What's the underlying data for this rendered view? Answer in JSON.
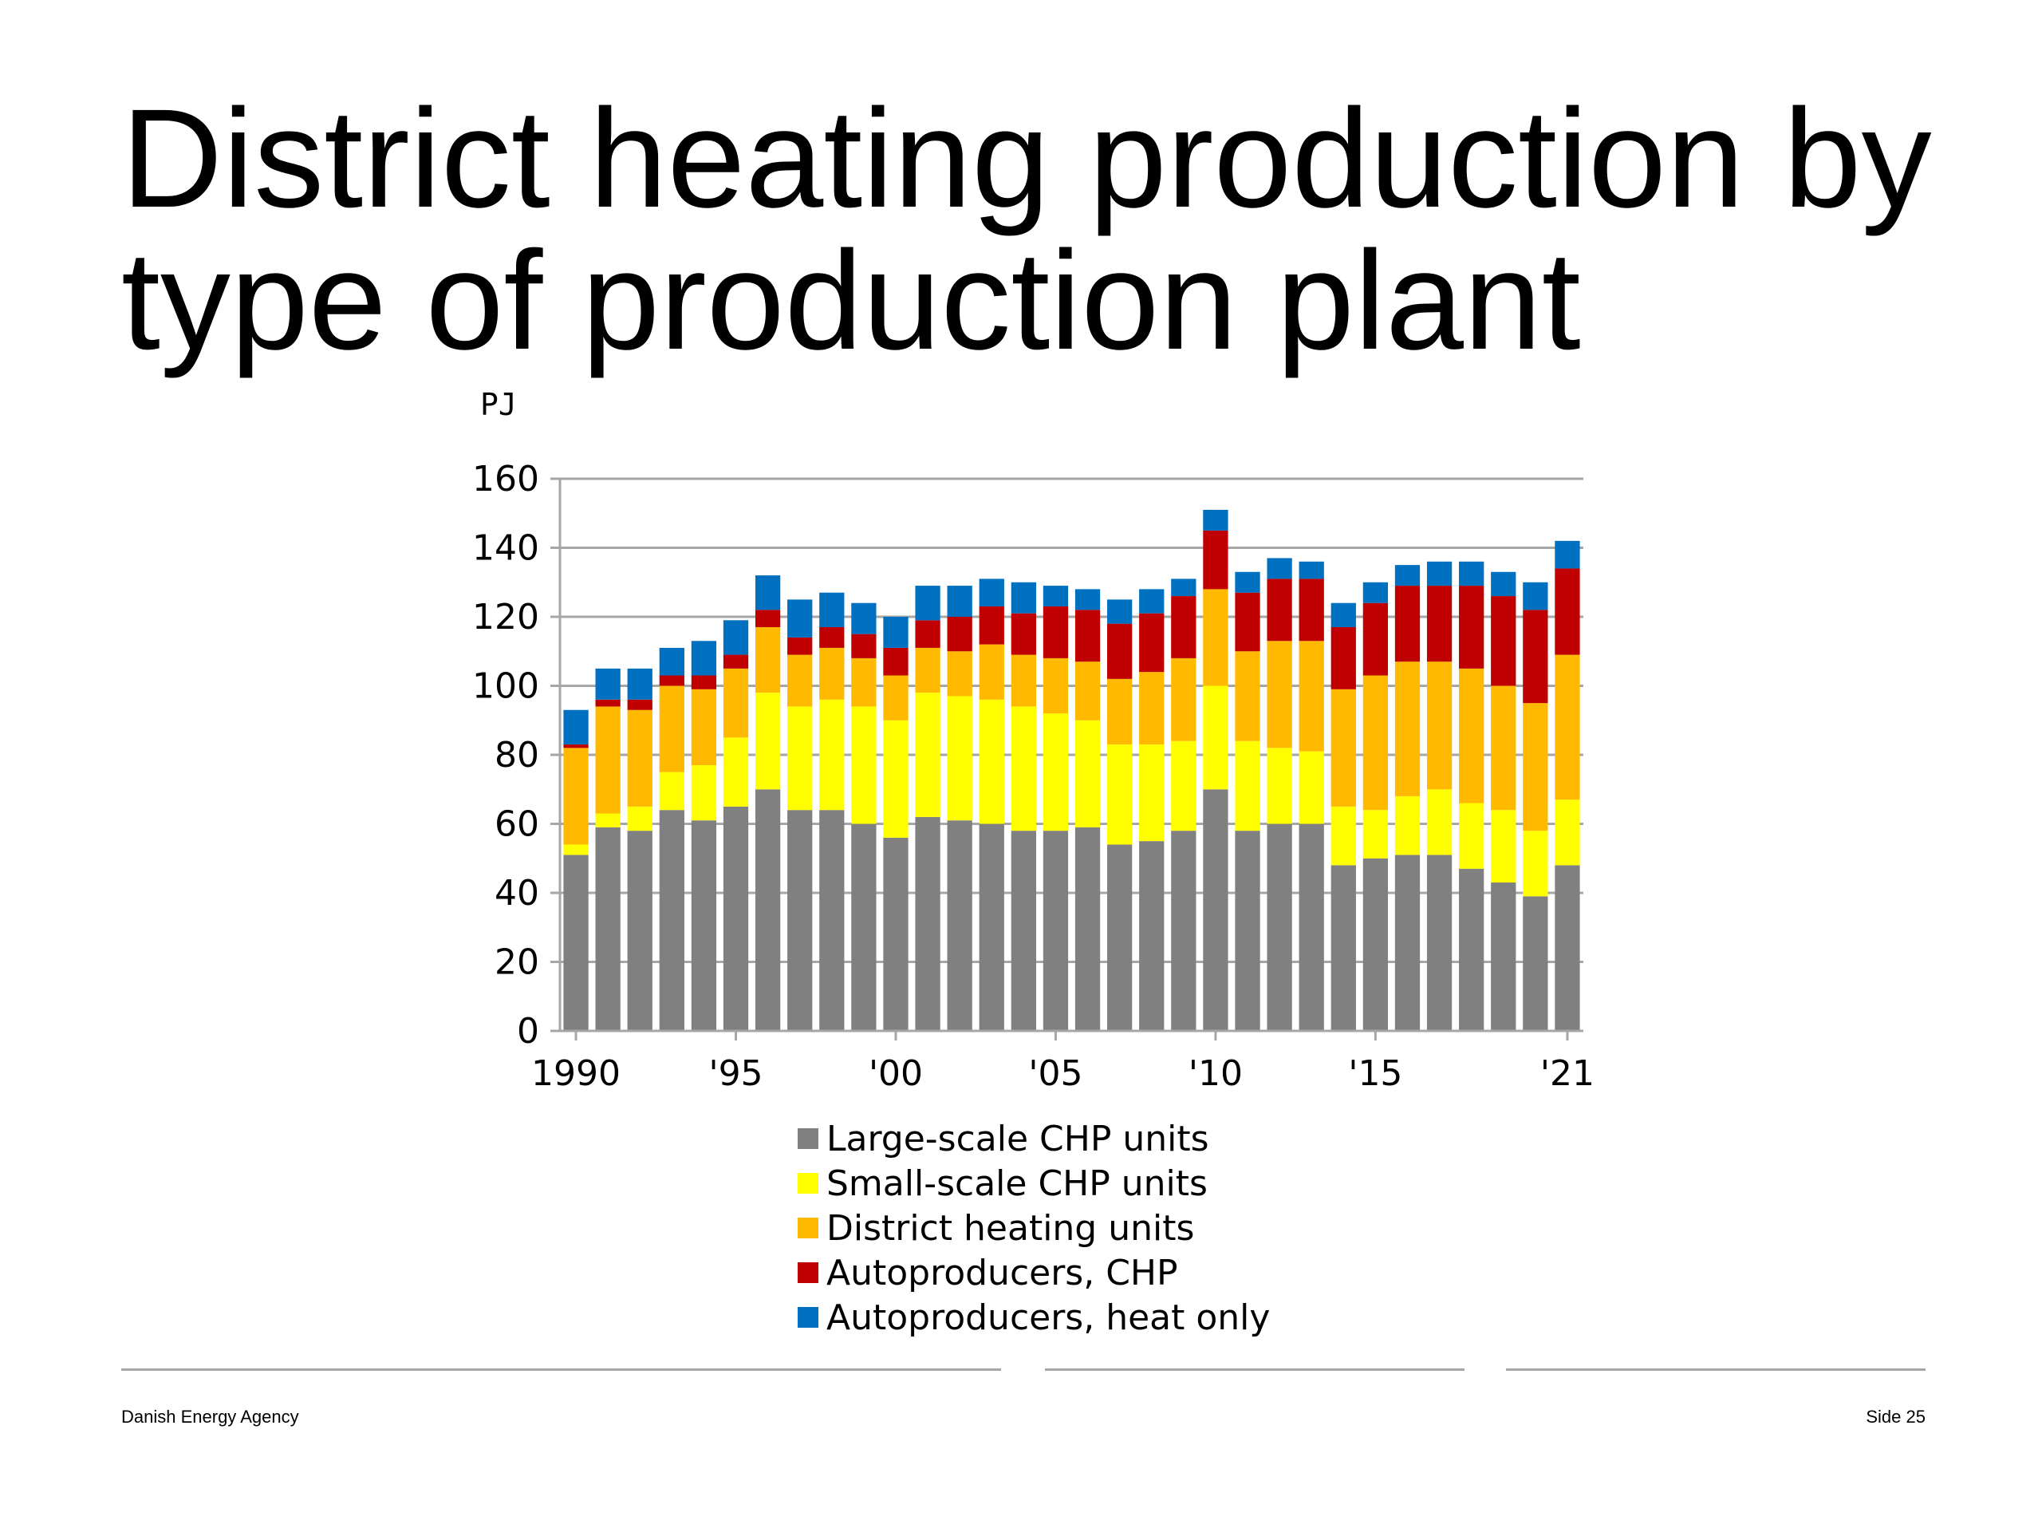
{
  "slide": {
    "title": "District heating production by type of production plant"
  },
  "footer": {
    "organization": "Danish Energy Agency",
    "page": "Side 25"
  },
  "colors": {
    "large_scale_chp": "#808080",
    "small_scale_chp": "#ffff00",
    "district_heating_units": "#ffb900",
    "autoproducers_chp": "#c00000",
    "autoproducers_heat_only": "#0070c0",
    "gridline": "#a6a6a6"
  },
  "chart_data": {
    "type": "bar",
    "stacked": true,
    "unit_label": "PJ",
    "ylim": [
      0,
      160
    ],
    "y_ticks": [
      0,
      20,
      40,
      60,
      80,
      100,
      120,
      140,
      160
    ],
    "grid": true,
    "legend_position": "bottom",
    "x_tick_labels": [
      "1990",
      "'95",
      "'00",
      "'05",
      "'10",
      "'15",
      "'21"
    ],
    "categories": [
      "1990",
      "1991",
      "1992",
      "1993",
      "1994",
      "1995",
      "1996",
      "1997",
      "1998",
      "1999",
      "2000",
      "2001",
      "2002",
      "2003",
      "2004",
      "2005",
      "2006",
      "2007",
      "2008",
      "2009",
      "2010",
      "2011",
      "2012",
      "2013",
      "2014",
      "2015",
      "2016",
      "2017",
      "2018",
      "2019",
      "2020",
      "2021"
    ],
    "series": [
      {
        "name": "Large-scale CHP units",
        "color_key": "large_scale_chp",
        "values": [
          51,
          59,
          58,
          64,
          61,
          65,
          70,
          64,
          64,
          60,
          56,
          62,
          61,
          60,
          58,
          58,
          59,
          54,
          55,
          58,
          70,
          58,
          60,
          60,
          48,
          50,
          51,
          51,
          47,
          43,
          39,
          48
        ]
      },
      {
        "name": "Small-scale CHP units",
        "color_key": "small_scale_chp",
        "values": [
          3,
          4,
          7,
          11,
          16,
          20,
          28,
          30,
          32,
          34,
          34,
          36,
          36,
          36,
          36,
          34,
          31,
          29,
          28,
          26,
          30,
          26,
          22,
          21,
          17,
          14,
          17,
          19,
          19,
          21,
          19,
          19
        ]
      },
      {
        "name": "District heating units",
        "color_key": "district_heating_units",
        "values": [
          28,
          31,
          28,
          25,
          22,
          20,
          19,
          15,
          15,
          14,
          13,
          13,
          13,
          16,
          15,
          16,
          17,
          19,
          21,
          24,
          28,
          26,
          31,
          32,
          34,
          39,
          39,
          37,
          39,
          36,
          37,
          42
        ]
      },
      {
        "name": "Autoproducers, CHP",
        "color_key": "autoproducers_chp",
        "values": [
          1,
          2,
          3,
          3,
          4,
          4,
          5,
          5,
          6,
          7,
          8,
          8,
          10,
          11,
          12,
          15,
          15,
          16,
          17,
          18,
          17,
          17,
          18,
          18,
          18,
          21,
          22,
          22,
          24,
          26,
          27,
          25
        ]
      },
      {
        "name": "Autoproducers, heat only",
        "color_key": "autoproducers_heat_only",
        "values": [
          10,
          9,
          9,
          8,
          10,
          10,
          10,
          11,
          10,
          9,
          9,
          10,
          9,
          8,
          9,
          6,
          6,
          7,
          7,
          5,
          6,
          6,
          6,
          5,
          7,
          6,
          6,
          7,
          7,
          7,
          8,
          8
        ]
      }
    ]
  }
}
